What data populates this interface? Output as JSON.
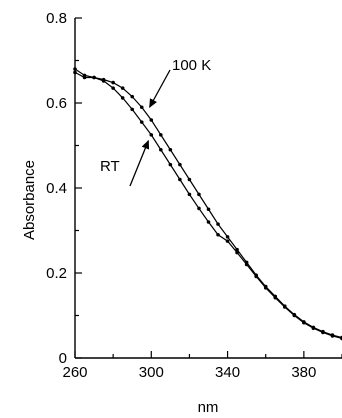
{
  "chart_data": {
    "type": "line",
    "title": "",
    "xlabel": "nm",
    "ylabel": "Absorbance",
    "xlim": [
      260,
      400
    ],
    "ylim": [
      0,
      0.8
    ],
    "x_ticks": [
      {
        "value": 260,
        "label": "260"
      },
      {
        "value": 300,
        "label": "300"
      },
      {
        "value": 340,
        "label": "340"
      },
      {
        "value": 380,
        "label": "380"
      }
    ],
    "y_ticks": [
      {
        "value": 0,
        "label": "0"
      },
      {
        "value": 0.2,
        "label": "0.2"
      },
      {
        "value": 0.4,
        "label": "0.4"
      },
      {
        "value": 0.6,
        "label": "0.6"
      },
      {
        "value": 0.8,
        "label": "0.8"
      }
    ],
    "grid": false,
    "series": [
      {
        "name": "100 K",
        "x": [
          260,
          265,
          270,
          275,
          280,
          285,
          290,
          295,
          300,
          305,
          310,
          315,
          320,
          325,
          330,
          335,
          340,
          345,
          350,
          355,
          360,
          365,
          370,
          375,
          380,
          385,
          390,
          395,
          400
        ],
        "y": [
          0.68,
          0.665,
          0.66,
          0.655,
          0.648,
          0.635,
          0.615,
          0.59,
          0.56,
          0.525,
          0.49,
          0.455,
          0.42,
          0.385,
          0.35,
          0.315,
          0.285,
          0.255,
          0.225,
          0.195,
          0.168,
          0.145,
          0.122,
          0.102,
          0.085,
          0.072,
          0.062,
          0.054,
          0.048
        ]
      },
      {
        "name": "RT",
        "x": [
          260,
          265,
          270,
          275,
          280,
          285,
          290,
          295,
          300,
          305,
          310,
          315,
          320,
          325,
          330,
          335,
          340,
          345,
          350,
          355,
          360,
          365,
          370,
          375,
          380,
          385,
          390,
          395,
          400
        ],
        "y": [
          0.672,
          0.66,
          0.66,
          0.652,
          0.635,
          0.612,
          0.585,
          0.555,
          0.525,
          0.49,
          0.455,
          0.42,
          0.385,
          0.352,
          0.32,
          0.29,
          0.275,
          0.248,
          0.22,
          0.192,
          0.165,
          0.142,
          0.12,
          0.1,
          0.083,
          0.07,
          0.06,
          0.052,
          0.046
        ]
      }
    ],
    "annotations": [
      {
        "text": "100 K",
        "arrow_to": {
          "x": 296,
          "y": 0.595
        }
      },
      {
        "text": "RT",
        "arrow_to": {
          "x": 299,
          "y": 0.53
        }
      }
    ]
  }
}
